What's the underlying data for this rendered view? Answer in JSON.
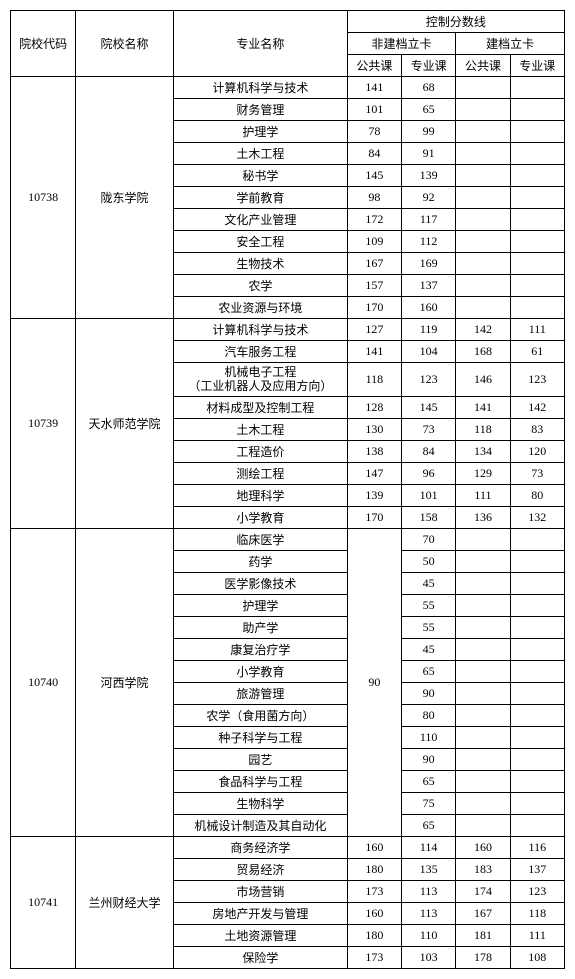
{
  "headers": {
    "code": "院校代码",
    "school": "院校名称",
    "major": "专业名称",
    "scoreline": "控制分数线",
    "non_filed": "非建档立卡",
    "filed": "建档立卡",
    "public": "公共课",
    "special": "专业课"
  },
  "schools": [
    {
      "code": "10738",
      "name": "陇东学院",
      "majors": [
        {
          "name": "计算机科学与技术",
          "np": "141",
          "ns": "68",
          "fp": "",
          "fs": ""
        },
        {
          "name": "财务管理",
          "np": "101",
          "ns": "65",
          "fp": "",
          "fs": ""
        },
        {
          "name": "护理学",
          "np": "78",
          "ns": "99",
          "fp": "",
          "fs": ""
        },
        {
          "name": "土木工程",
          "np": "84",
          "ns": "91",
          "fp": "",
          "fs": ""
        },
        {
          "name": "秘书学",
          "np": "145",
          "ns": "139",
          "fp": "",
          "fs": ""
        },
        {
          "name": "学前教育",
          "np": "98",
          "ns": "92",
          "fp": "",
          "fs": ""
        },
        {
          "name": "文化产业管理",
          "np": "172",
          "ns": "117",
          "fp": "",
          "fs": ""
        },
        {
          "name": "安全工程",
          "np": "109",
          "ns": "112",
          "fp": "",
          "fs": ""
        },
        {
          "name": "生物技术",
          "np": "167",
          "ns": "169",
          "fp": "",
          "fs": ""
        },
        {
          "name": "农学",
          "np": "157",
          "ns": "137",
          "fp": "",
          "fs": ""
        },
        {
          "name": "农业资源与环境",
          "np": "170",
          "ns": "160",
          "fp": "",
          "fs": ""
        }
      ]
    },
    {
      "code": "10739",
      "name": "天水师范学院",
      "majors": [
        {
          "name": "计算机科学与技术",
          "np": "127",
          "ns": "119",
          "fp": "142",
          "fs": "111"
        },
        {
          "name": "汽车服务工程",
          "np": "141",
          "ns": "104",
          "fp": "168",
          "fs": "61"
        },
        {
          "name": "机械电子工程\n（工业机器人及应用方向）",
          "np": "118",
          "ns": "123",
          "fp": "146",
          "fs": "123"
        },
        {
          "name": "材料成型及控制工程",
          "np": "128",
          "ns": "145",
          "fp": "141",
          "fs": "142"
        },
        {
          "name": "土木工程",
          "np": "130",
          "ns": "73",
          "fp": "118",
          "fs": "83"
        },
        {
          "name": "工程造价",
          "np": "138",
          "ns": "84",
          "fp": "134",
          "fs": "120"
        },
        {
          "name": "测绘工程",
          "np": "147",
          "ns": "96",
          "fp": "129",
          "fs": "73"
        },
        {
          "name": "地理科学",
          "np": "139",
          "ns": "101",
          "fp": "111",
          "fs": "80"
        },
        {
          "name": "小学教育",
          "np": "170",
          "ns": "158",
          "fp": "136",
          "fs": "132"
        }
      ]
    },
    {
      "code": "10740",
      "name": "河西学院",
      "shared_np": "90",
      "majors": [
        {
          "name": "临床医学",
          "ns": "70",
          "fp": "",
          "fs": ""
        },
        {
          "name": "药学",
          "ns": "50",
          "fp": "",
          "fs": ""
        },
        {
          "name": "医学影像技术",
          "ns": "45",
          "fp": "",
          "fs": ""
        },
        {
          "name": "护理学",
          "ns": "55",
          "fp": "",
          "fs": ""
        },
        {
          "name": "助产学",
          "ns": "55",
          "fp": "",
          "fs": ""
        },
        {
          "name": "康复治疗学",
          "ns": "45",
          "fp": "",
          "fs": ""
        },
        {
          "name": "小学教育",
          "ns": "65",
          "fp": "",
          "fs": ""
        },
        {
          "name": "旅游管理",
          "ns": "90",
          "fp": "",
          "fs": ""
        },
        {
          "name": "农学（食用菌方向）",
          "ns": "80",
          "fp": "",
          "fs": ""
        },
        {
          "name": "种子科学与工程",
          "ns": "110",
          "fp": "",
          "fs": ""
        },
        {
          "name": "园艺",
          "ns": "90",
          "fp": "",
          "fs": ""
        },
        {
          "name": "食品科学与工程",
          "ns": "65",
          "fp": "",
          "fs": ""
        },
        {
          "name": "生物科学",
          "ns": "75",
          "fp": "",
          "fs": ""
        },
        {
          "name": "机械设计制造及其自动化",
          "ns": "65",
          "fp": "",
          "fs": ""
        }
      ]
    },
    {
      "code": "10741",
      "name": "兰州财经大学",
      "majors": [
        {
          "name": "商务经济学",
          "np": "160",
          "ns": "114",
          "fp": "160",
          "fs": "116"
        },
        {
          "name": "贸易经济",
          "np": "180",
          "ns": "135",
          "fp": "183",
          "fs": "137"
        },
        {
          "name": "市场营销",
          "np": "173",
          "ns": "113",
          "fp": "174",
          "fs": "123"
        },
        {
          "name": "房地产开发与管理",
          "np": "160",
          "ns": "113",
          "fp": "167",
          "fs": "118"
        },
        {
          "name": "土地资源管理",
          "np": "180",
          "ns": "110",
          "fp": "181",
          "fs": "111"
        },
        {
          "name": "保险学",
          "np": "173",
          "ns": "103",
          "fp": "178",
          "fs": "108"
        }
      ]
    }
  ]
}
